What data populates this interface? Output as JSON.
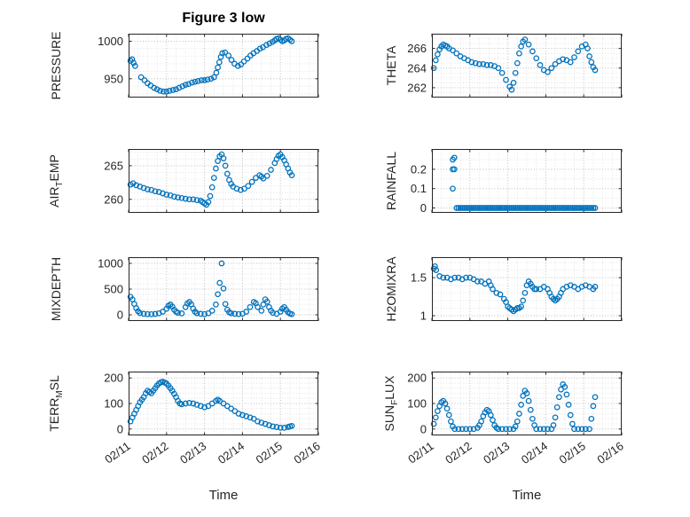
{
  "figure": {
    "title": "Figure 3 low",
    "xlabel": "Time",
    "marker_color": "#0072BD",
    "axis_color": "#262626",
    "grid_color": "#bdbdbd",
    "grid_minor_color": "#e3e3e3",
    "xlim": [
      0,
      5
    ],
    "xminor": 0.25,
    "xtick_labels": [
      "02/11",
      "02/12",
      "02/13",
      "02/14",
      "02/15",
      "02/16"
    ]
  },
  "chart_data": [
    {
      "type": "scatter",
      "name": "pressure",
      "ylabel_parts": [
        [
          "PRESSURE",
          0
        ]
      ],
      "ylim": [
        925,
        1010
      ],
      "yticks": [
        950,
        1000
      ],
      "yminor": 10,
      "show_xticks": false,
      "x": [
        0.05,
        0.09,
        0.13,
        0.17,
        0.33,
        0.42,
        0.5,
        0.58,
        0.67,
        0.75,
        0.83,
        0.92,
        1.0,
        1.08,
        1.17,
        1.25,
        1.33,
        1.42,
        1.5,
        1.58,
        1.67,
        1.75,
        1.83,
        1.92,
        2.0,
        2.08,
        2.17,
        2.25,
        2.31,
        2.35,
        2.39,
        2.43,
        2.47,
        2.54,
        2.63,
        2.71,
        2.79,
        2.88,
        2.96,
        3.04,
        3.13,
        3.21,
        3.29,
        3.38,
        3.46,
        3.54,
        3.63,
        3.71,
        3.79,
        3.85,
        3.9,
        3.95,
        4.0,
        4.05,
        4.1,
        4.15,
        4.2,
        4.25,
        4.3
      ],
      "y": [
        974,
        976,
        971,
        967,
        952,
        948,
        944,
        941,
        938,
        936,
        934,
        933,
        933,
        934,
        935,
        936,
        938,
        940,
        942,
        943,
        945,
        946,
        947,
        948,
        948,
        949,
        950,
        952,
        958,
        965,
        972,
        979,
        984,
        985,
        981,
        975,
        970,
        967,
        969,
        973,
        977,
        981,
        984,
        987,
        990,
        992,
        995,
        997,
        999,
        1001,
        1003,
        1004,
        1002,
        1000,
        1001,
        1003,
        1004,
        1002,
        1000
      ]
    },
    {
      "type": "scatter",
      "name": "theta",
      "ylabel_parts": [
        [
          "THETA",
          0
        ]
      ],
      "ylim": [
        261,
        267.5
      ],
      "yticks": [
        262,
        264,
        266
      ],
      "yminor": 0.5,
      "show_xticks": false,
      "x": [
        0.05,
        0.1,
        0.15,
        0.2,
        0.25,
        0.3,
        0.35,
        0.4,
        0.45,
        0.55,
        0.65,
        0.75,
        0.85,
        0.95,
        1.05,
        1.15,
        1.25,
        1.35,
        1.45,
        1.55,
        1.65,
        1.75,
        1.85,
        1.95,
        2.05,
        2.1,
        2.15,
        2.2,
        2.25,
        2.3,
        2.35,
        2.4,
        2.45,
        2.55,
        2.65,
        2.75,
        2.85,
        2.95,
        3.05,
        3.15,
        3.25,
        3.35,
        3.45,
        3.55,
        3.65,
        3.75,
        3.85,
        3.95,
        4.05,
        4.1,
        4.15,
        4.2,
        4.25,
        4.3
      ],
      "y": [
        264.0,
        264.8,
        265.4,
        265.9,
        266.2,
        266.4,
        266.3,
        266.2,
        266.0,
        265.8,
        265.5,
        265.2,
        265.0,
        264.8,
        264.6,
        264.5,
        264.4,
        264.4,
        264.3,
        264.3,
        264.2,
        264.0,
        263.5,
        262.8,
        262.1,
        261.8,
        262.5,
        263.5,
        264.5,
        265.5,
        266.2,
        266.7,
        266.9,
        266.4,
        265.7,
        265.0,
        264.3,
        263.8,
        263.6,
        264.0,
        264.4,
        264.7,
        264.9,
        264.8,
        264.6,
        265.1,
        265.7,
        266.2,
        266.4,
        266.0,
        265.2,
        264.6,
        264.1,
        263.8
      ]
    },
    {
      "type": "scatter",
      "name": "air-temp",
      "ylabel_parts": [
        [
          "AIR",
          0
        ],
        [
          "T",
          1
        ],
        [
          "EMP",
          0
        ]
      ],
      "ylim": [
        258,
        267.5
      ],
      "yticks": [
        260,
        265
      ],
      "yminor": 1,
      "show_xticks": false,
      "x": [
        0.05,
        0.12,
        0.2,
        0.3,
        0.4,
        0.5,
        0.6,
        0.7,
        0.8,
        0.9,
        1.0,
        1.1,
        1.2,
        1.3,
        1.4,
        1.5,
        1.6,
        1.7,
        1.8,
        1.9,
        1.95,
        2.0,
        2.05,
        2.1,
        2.15,
        2.2,
        2.25,
        2.3,
        2.35,
        2.4,
        2.45,
        2.5,
        2.55,
        2.6,
        2.65,
        2.7,
        2.75,
        2.85,
        2.95,
        3.05,
        3.15,
        3.25,
        3.35,
        3.45,
        3.5,
        3.55,
        3.65,
        3.75,
        3.85,
        3.9,
        3.95,
        4.0,
        4.05,
        4.1,
        4.15,
        4.2,
        4.25,
        4.3
      ],
      "y": [
        262.2,
        262.4,
        262.1,
        261.9,
        261.7,
        261.5,
        261.4,
        261.2,
        261.1,
        260.9,
        260.7,
        260.6,
        260.4,
        260.3,
        260.2,
        260.1,
        260.0,
        260.0,
        259.9,
        259.8,
        259.6,
        259.4,
        259.2,
        259.6,
        260.5,
        261.8,
        263.2,
        264.6,
        265.7,
        266.4,
        266.7,
        266.1,
        265.0,
        263.8,
        262.9,
        262.3,
        261.9,
        261.6,
        261.4,
        261.6,
        262.0,
        262.6,
        263.2,
        263.6,
        263.4,
        263.1,
        263.5,
        264.4,
        265.4,
        266.0,
        266.5,
        266.7,
        266.3,
        265.8,
        265.2,
        264.6,
        264.0,
        263.6
      ]
    },
    {
      "type": "scatter",
      "name": "rainfall",
      "ylabel_parts": [
        [
          "RAINFALL",
          0
        ]
      ],
      "ylim": [
        -0.025,
        0.305
      ],
      "yticks": [
        0,
        0.1,
        0.2
      ],
      "yminor": 0.05,
      "show_xticks": false,
      "x": [
        0.55,
        0.59,
        0.55,
        0.59,
        0.55,
        0.65,
        0.7,
        0.75,
        0.8,
        0.85,
        0.9,
        0.95,
        1.0,
        1.05,
        1.1,
        1.15,
        1.2,
        1.25,
        1.3,
        1.35,
        1.4,
        1.45,
        1.5,
        1.55,
        1.6,
        1.65,
        1.7,
        1.75,
        1.8,
        1.85,
        1.9,
        1.95,
        2.0,
        2.05,
        2.1,
        2.15,
        2.2,
        2.25,
        2.3,
        2.35,
        2.4,
        2.45,
        2.5,
        2.55,
        2.6,
        2.65,
        2.7,
        2.75,
        2.8,
        2.85,
        2.9,
        2.95,
        3.0,
        3.05,
        3.1,
        3.15,
        3.2,
        3.25,
        3.3,
        3.35,
        3.4,
        3.45,
        3.5,
        3.55,
        3.6,
        3.65,
        3.7,
        3.75,
        3.8,
        3.85,
        3.9,
        3.95,
        4.0,
        4.05,
        4.1,
        4.15,
        4.2,
        4.25,
        4.3
      ],
      "y": [
        0.25,
        0.26,
        0.2,
        0.2,
        0.1,
        0,
        0,
        0,
        0,
        0,
        0,
        0,
        0,
        0,
        0,
        0,
        0,
        0,
        0,
        0,
        0,
        0,
        0,
        0,
        0,
        0,
        0,
        0,
        0,
        0,
        0,
        0,
        0,
        0,
        0,
        0,
        0,
        0,
        0,
        0,
        0,
        0,
        0,
        0,
        0,
        0,
        0,
        0,
        0,
        0,
        0,
        0,
        0,
        0,
        0,
        0,
        0,
        0,
        0,
        0,
        0,
        0,
        0,
        0,
        0,
        0,
        0,
        0,
        0,
        0,
        0,
        0,
        0,
        0,
        0,
        0,
        0,
        0,
        0
      ]
    },
    {
      "type": "scatter",
      "name": "mixdepth",
      "ylabel_parts": [
        [
          "MIXDEPTH",
          0
        ]
      ],
      "ylim": [
        -120,
        1120
      ],
      "yticks": [
        0,
        500,
        1000
      ],
      "yminor": 100,
      "show_xticks": false,
      "x": [
        0.05,
        0.1,
        0.15,
        0.2,
        0.25,
        0.3,
        0.4,
        0.5,
        0.6,
        0.7,
        0.8,
        0.9,
        1.0,
        1.05,
        1.1,
        1.15,
        1.2,
        1.25,
        1.3,
        1.4,
        1.5,
        1.55,
        1.6,
        1.65,
        1.7,
        1.75,
        1.8,
        1.9,
        2.0,
        2.1,
        2.2,
        2.3,
        2.35,
        2.4,
        2.45,
        2.5,
        2.55,
        2.6,
        2.65,
        2.7,
        2.8,
        2.9,
        3.0,
        3.1,
        3.2,
        3.3,
        3.35,
        3.4,
        3.5,
        3.55,
        3.6,
        3.65,
        3.7,
        3.75,
        3.8,
        3.9,
        4.0,
        4.05,
        4.1,
        4.15,
        4.2,
        4.25,
        4.3
      ],
      "y": [
        350,
        300,
        210,
        130,
        70,
        35,
        20,
        15,
        12,
        18,
        30,
        60,
        120,
        175,
        200,
        160,
        100,
        60,
        40,
        28,
        150,
        220,
        250,
        205,
        120,
        60,
        30,
        20,
        15,
        30,
        80,
        200,
        400,
        620,
        1000,
        510,
        210,
        100,
        50,
        30,
        20,
        15,
        22,
        60,
        150,
        250,
        225,
        150,
        80,
        200,
        300,
        255,
        150,
        80,
        40,
        20,
        60,
        120,
        150,
        100,
        50,
        25,
        12
      ]
    },
    {
      "type": "scatter",
      "name": "h2omixra",
      "ylabel_parts": [
        [
          "H2OMIXRA",
          0
        ]
      ],
      "ylim": [
        0.93,
        1.77
      ],
      "yticks": [
        1,
        1.5
      ],
      "yminor": 0.1,
      "show_xticks": false,
      "x": [
        0.05,
        0.08,
        0.11,
        0.2,
        0.3,
        0.4,
        0.5,
        0.6,
        0.7,
        0.8,
        0.9,
        1.0,
        1.1,
        1.2,
        1.3,
        1.4,
        1.5,
        1.55,
        1.6,
        1.7,
        1.8,
        1.9,
        1.95,
        2.0,
        2.05,
        2.1,
        2.15,
        2.2,
        2.25,
        2.3,
        2.35,
        2.4,
        2.45,
        2.5,
        2.55,
        2.6,
        2.65,
        2.7,
        2.75,
        2.85,
        2.95,
        3.05,
        3.1,
        3.15,
        3.2,
        3.25,
        3.3,
        3.35,
        3.4,
        3.45,
        3.55,
        3.65,
        3.75,
        3.85,
        3.95,
        4.05,
        4.15,
        4.25,
        4.3
      ],
      "y": [
        1.62,
        1.65,
        1.6,
        1.52,
        1.5,
        1.5,
        1.48,
        1.5,
        1.5,
        1.48,
        1.5,
        1.5,
        1.48,
        1.45,
        1.45,
        1.42,
        1.45,
        1.4,
        1.35,
        1.3,
        1.28,
        1.22,
        1.18,
        1.12,
        1.1,
        1.08,
        1.06,
        1.08,
        1.1,
        1.1,
        1.12,
        1.2,
        1.3,
        1.4,
        1.45,
        1.42,
        1.38,
        1.35,
        1.35,
        1.35,
        1.38,
        1.35,
        1.3,
        1.25,
        1.22,
        1.2,
        1.22,
        1.25,
        1.3,
        1.35,
        1.38,
        1.4,
        1.38,
        1.35,
        1.38,
        1.4,
        1.38,
        1.35,
        1.38
      ]
    },
    {
      "type": "scatter",
      "name": "terr-msl",
      "ylabel_parts": [
        [
          "TERR",
          0
        ],
        [
          "M",
          1
        ],
        [
          "SL",
          0
        ]
      ],
      "ylim": [
        -25,
        225
      ],
      "yticks": [
        0,
        100,
        200
      ],
      "yminor": 20,
      "show_xticks": true,
      "x": [
        0.05,
        0.1,
        0.15,
        0.2,
        0.25,
        0.3,
        0.35,
        0.4,
        0.45,
        0.5,
        0.55,
        0.6,
        0.65,
        0.7,
        0.75,
        0.8,
        0.85,
        0.9,
        0.95,
        1.0,
        1.05,
        1.1,
        1.15,
        1.2,
        1.25,
        1.3,
        1.35,
        1.4,
        1.5,
        1.6,
        1.7,
        1.8,
        1.9,
        2.0,
        2.1,
        2.2,
        2.3,
        2.35,
        2.4,
        2.5,
        2.6,
        2.7,
        2.8,
        2.9,
        3.0,
        3.1,
        3.2,
        3.3,
        3.4,
        3.5,
        3.6,
        3.7,
        3.8,
        3.9,
        4.0,
        4.1,
        4.2,
        4.25,
        4.3
      ],
      "y": [
        30,
        45,
        60,
        75,
        90,
        105,
        115,
        125,
        140,
        150,
        145,
        140,
        150,
        160,
        170,
        178,
        183,
        185,
        182,
        178,
        170,
        160,
        150,
        138,
        125,
        110,
        100,
        97,
        100,
        102,
        100,
        95,
        90,
        85,
        90,
        100,
        110,
        115,
        110,
        100,
        90,
        80,
        70,
        60,
        55,
        50,
        45,
        40,
        30,
        25,
        20,
        15,
        10,
        8,
        5,
        5,
        8,
        10,
        12
      ]
    },
    {
      "type": "scatter",
      "name": "sun-flux",
      "ylabel_parts": [
        [
          "SUN",
          0
        ],
        [
          "F",
          1
        ],
        [
          "LUX",
          0
        ]
      ],
      "ylim": [
        -25,
        225
      ],
      "yticks": [
        0,
        100,
        200
      ],
      "yminor": 20,
      "show_xticks": true,
      "x": [
        0.05,
        0.1,
        0.15,
        0.2,
        0.25,
        0.3,
        0.35,
        0.4,
        0.45,
        0.5,
        0.55,
        0.6,
        0.7,
        0.8,
        0.9,
        1.0,
        1.1,
        1.2,
        1.25,
        1.3,
        1.35,
        1.4,
        1.45,
        1.5,
        1.55,
        1.6,
        1.65,
        1.7,
        1.75,
        1.85,
        1.95,
        2.05,
        2.15,
        2.2,
        2.25,
        2.3,
        2.35,
        2.4,
        2.45,
        2.5,
        2.55,
        2.6,
        2.65,
        2.7,
        2.75,
        2.85,
        2.95,
        3.05,
        3.15,
        3.2,
        3.25,
        3.3,
        3.35,
        3.4,
        3.45,
        3.5,
        3.55,
        3.6,
        3.65,
        3.7,
        3.75,
        3.85,
        3.95,
        4.05,
        4.15,
        4.2,
        4.25,
        4.3
      ],
      "y": [
        20,
        45,
        70,
        90,
        105,
        110,
        100,
        80,
        55,
        30,
        10,
        0,
        0,
        0,
        0,
        0,
        0,
        5,
        15,
        30,
        50,
        65,
        75,
        70,
        55,
        35,
        15,
        5,
        0,
        0,
        0,
        0,
        0,
        10,
        30,
        60,
        95,
        130,
        150,
        140,
        110,
        75,
        40,
        15,
        0,
        0,
        0,
        0,
        0,
        15,
        45,
        85,
        125,
        155,
        175,
        165,
        135,
        95,
        55,
        20,
        0,
        0,
        0,
        0,
        0,
        40,
        90,
        125
      ]
    }
  ]
}
